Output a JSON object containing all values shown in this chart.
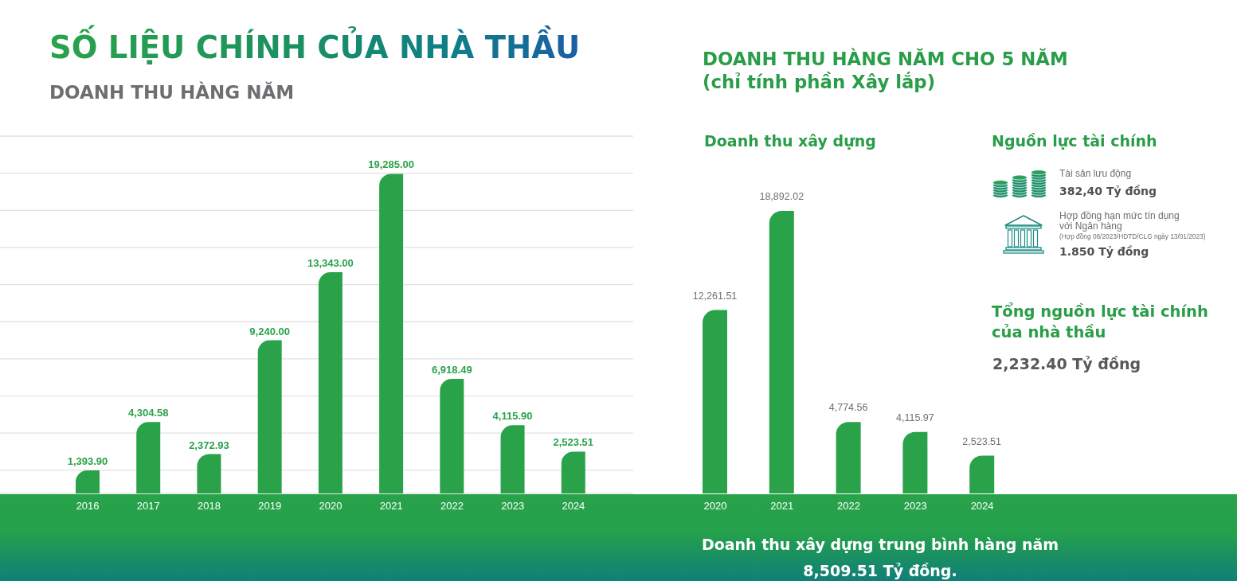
{
  "chart_data": [
    {
      "type": "bar",
      "title": "SỐ LIỆU CHÍNH CỦA NHÀ THẦU",
      "subtitle": "DOANH THU HÀNG NĂM",
      "categories": [
        "2016",
        "2017",
        "2018",
        "2019",
        "2020",
        "2021",
        "2022",
        "2023",
        "2024"
      ],
      "values": [
        1393.9,
        4304.58,
        2372.93,
        9240,
        13343,
        19285,
        6918.49,
        4115.9,
        2523.51
      ],
      "value_labels": [
        "1,393.90",
        "4,304.58",
        "2,372.93",
        "9,240.00",
        "13,343.00",
        "19,285.00",
        "6,918.49",
        "4,115.90",
        "2,523.51"
      ],
      "color": "#2aa24a",
      "ylim": [
        0,
        21560
      ],
      "yticks": [
        {
          "value": 1400,
          "label": null
        },
        {
          "value": 3640,
          "label": null
        },
        {
          "value": 5880,
          "label": null
        },
        {
          "value": 8120,
          "label": null
        },
        {
          "value": 10360,
          "label": null
        },
        {
          "value": 12600,
          "label": null
        },
        {
          "value": 14840,
          "label": null
        },
        {
          "value": 17080,
          "label": null
        },
        {
          "value": 19320,
          "label": null
        },
        {
          "value": 21560,
          "label": null
        }
      ],
      "grid": "y",
      "tick_labels": "x"
    },
    {
      "type": "bar",
      "title": "DOANH THU HÀNG NĂM CHO 5 NĂM",
      "subtitle": "(chỉ tính phần Xây lắp)",
      "categories": [
        "2020",
        "2021",
        "2022",
        "2023",
        "2024"
      ],
      "series": [
        {
          "name": "Doanh thu xây dựng",
          "color": "#2aa24a",
          "values": [
            12261.51,
            18892.02,
            4774.56,
            4115.97,
            2523.51
          ],
          "value_labels": [
            "12,261.51",
            "18,892.02",
            "4,774.56",
            "4,115.97",
            "2,523.51"
          ]
        }
      ],
      "tick_labels": "x",
      "annotations": [
        "Doanh thu xây dựng trung bình hàng năm",
        "8,509.51 Tỷ đồng."
      ]
    },
    {
      "type": "other",
      "title": "Nguồn lực tài chính",
      "annotations": [
        "Tài sản lưu động",
        "382,40 Tỷ đồng",
        "Hợp đồng hạn mức tín dụng với Ngân hàng",
        "(Hợp đồng 08/2023/HDTD/CLG ngày 13/01/2023)",
        "1.850 Tỷ đồng",
        "Tổng nguồn lực tài chính của nhà thầu",
        "2,232.40 Tỷ đồng"
      ]
    }
  ]
}
